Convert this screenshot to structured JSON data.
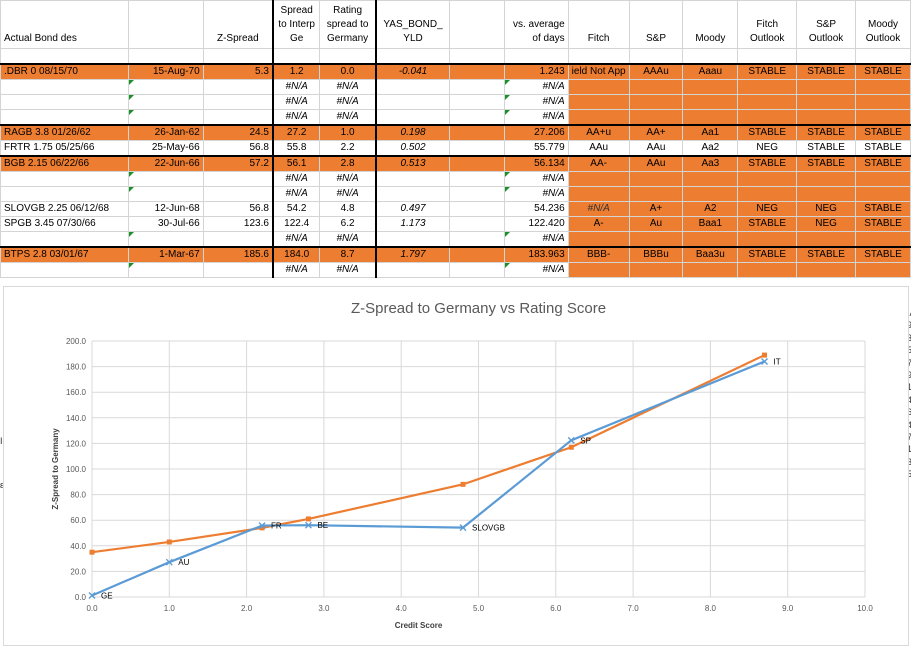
{
  "headers": [
    "Actual Bond des",
    "",
    "Z-Spread",
    "Spread to Interp Ge",
    "Rating spread to Germany",
    "YAS_BOND_ YLD",
    "",
    "vs. average of days",
    "Fitch",
    "S&P",
    "Moody",
    "Fitch Outlook",
    "S&P Outlook",
    "Moody Outlook"
  ],
  "rows": [
    {
      "style": "orange",
      "cells": [
        ".DBR 0 08/15/70",
        "15-Aug-70",
        "5.3",
        "1.2",
        "0.0",
        "-0.041",
        "",
        "1.243",
        "ield Not App",
        "AAAu",
        "Aaau",
        "STABLE",
        "STABLE",
        "STABLE"
      ]
    },
    {
      "style": "na",
      "cells": [
        "",
        "",
        "",
        "#N/A",
        "#N/A",
        "",
        "",
        "#N/A",
        "",
        "",
        "",
        "",
        "",
        ""
      ]
    },
    {
      "style": "na",
      "cells": [
        "",
        "",
        "",
        "#N/A",
        "#N/A",
        "",
        "",
        "#N/A",
        "",
        "",
        "",
        "",
        "",
        ""
      ]
    },
    {
      "style": "na",
      "cells": [
        "",
        "",
        "",
        "#N/A",
        "#N/A",
        "",
        "",
        "#N/A",
        "",
        "",
        "",
        "",
        "",
        ""
      ]
    },
    {
      "style": "orange",
      "cells": [
        "RAGB 3.8 01/26/62",
        "26-Jan-62",
        "24.5",
        "27.2",
        "1.0",
        "0.198",
        "",
        "27.206",
        "AA+u",
        "AA+",
        "Aa1",
        "STABLE",
        "STABLE",
        "STABLE"
      ]
    },
    {
      "style": "white",
      "cells": [
        "FRTR 1.75 05/25/66",
        "25-May-66",
        "56.8",
        "55.8",
        "2.2",
        "0.502",
        "",
        "55.779",
        "AAu",
        "AAu",
        "Aa2",
        "NEG",
        "STABLE",
        "STABLE"
      ]
    },
    {
      "style": "orange",
      "cells": [
        "BGB 2.15 06/22/66",
        "22-Jun-66",
        "57.2",
        "56.1",
        "2.8",
        "0.513",
        "",
        "56.134",
        "AA-",
        "AAu",
        "Aa3",
        "STABLE",
        "STABLE",
        "STABLE"
      ]
    },
    {
      "style": "na",
      "cells": [
        "",
        "",
        "",
        "#N/A",
        "#N/A",
        "",
        "",
        "#N/A",
        "",
        "",
        "",
        "",
        "",
        ""
      ]
    },
    {
      "style": "na",
      "cells": [
        "",
        "",
        "",
        "#N/A",
        "#N/A",
        "",
        "",
        "#N/A",
        "",
        "",
        "",
        "",
        "",
        ""
      ]
    },
    {
      "style": "wide",
      "cells": [
        "SLOVGB 2.25 06/12/68",
        "12-Jun-68",
        "56.8",
        "54.2",
        "4.8",
        "0.497",
        "",
        "54.236",
        "#N/A",
        "A+",
        "A2",
        "NEG",
        "NEG",
        "STABLE"
      ]
    },
    {
      "style": "wide",
      "cells": [
        "SPGB 3.45 07/30/66",
        "30-Jul-66",
        "123.6",
        "122.4",
        "6.2",
        "1.173",
        "",
        "122.420",
        "A-",
        "Au",
        "Baa1",
        "STABLE",
        "NEG",
        "STABLE"
      ]
    },
    {
      "style": "na",
      "cells": [
        "",
        "",
        "",
        "#N/A",
        "#N/A",
        "",
        "",
        "#N/A",
        "",
        "",
        "",
        "",
        "",
        ""
      ]
    },
    {
      "style": "orange",
      "cells": [
        "BTPS 2.8 03/01/67",
        "1-Mar-67",
        "185.6",
        "184.0",
        "8.7",
        "1.797",
        "",
        "183.963",
        "BBB-",
        "BBBu",
        "Baa3u",
        "STABLE",
        "STABLE",
        "STABLE"
      ]
    },
    {
      "style": "na",
      "cells": [
        "",
        "",
        "",
        "#N/A",
        "#N/A",
        "",
        "",
        "#N/A",
        "",
        "",
        "",
        "",
        "",
        ""
      ]
    }
  ],
  "right_stub": [
    ":A",
    "9",
    "3",
    "5",
    "7",
    "9",
    "1",
    "4",
    "6",
    "4",
    "7",
    "1",
    "3",
    "5"
  ],
  "left_stub": [
    "I",
    "ε"
  ],
  "chart_data": {
    "type": "line",
    "title": "Z-Spread to Germany vs Rating Score",
    "xlabel": "Credit Score",
    "ylabel": "Z-Spread to Germany",
    "xlim": [
      0,
      10
    ],
    "ylim": [
      0,
      200
    ],
    "xticks": [
      "0.0",
      "1.0",
      "2.0",
      "3.0",
      "4.0",
      "5.0",
      "6.0",
      "7.0",
      "8.0",
      "9.0",
      "10.0"
    ],
    "yticks": [
      "0.0",
      "20.0",
      "40.0",
      "60.0",
      "80.0",
      "100.0",
      "120.0",
      "140.0",
      "160.0",
      "180.0",
      "200.0"
    ],
    "grid": true,
    "series": [
      {
        "color": "#5b9bd5",
        "marker": "x",
        "points": [
          {
            "x": 0.0,
            "y": 1.2,
            "label": "GE"
          },
          {
            "x": 1.0,
            "y": 27.2,
            "label": "AU"
          },
          {
            "x": 2.2,
            "y": 55.8,
            "label": "FR"
          },
          {
            "x": 2.8,
            "y": 56.1,
            "label": "BE"
          },
          {
            "x": 4.8,
            "y": 54.2,
            "label": "SLOVGB"
          },
          {
            "x": 6.2,
            "y": 122.4,
            "label": "SP"
          },
          {
            "x": 8.7,
            "y": 184.0,
            "label": "IT"
          }
        ]
      },
      {
        "color": "#ed7d31",
        "marker": "square",
        "points": [
          {
            "x": 0.0,
            "y": 35.0
          },
          {
            "x": 1.0,
            "y": 43.0
          },
          {
            "x": 2.2,
            "y": 54.0
          },
          {
            "x": 2.8,
            "y": 61.0
          },
          {
            "x": 4.8,
            "y": 88.0
          },
          {
            "x": 6.2,
            "y": 117.0
          },
          {
            "x": 8.7,
            "y": 189.0
          }
        ]
      }
    ]
  }
}
